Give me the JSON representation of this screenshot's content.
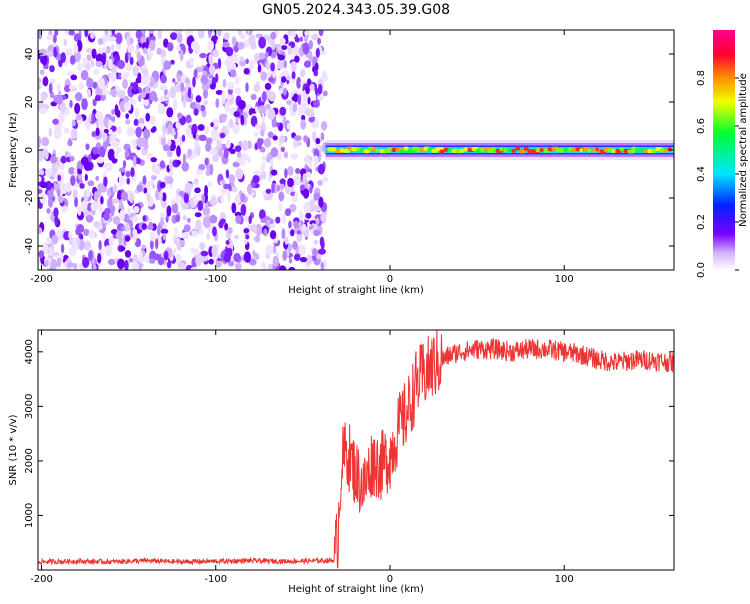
{
  "title": "GN05.2024.343.05.39.G08",
  "chart_data": [
    {
      "type": "heatmap",
      "xlabel": "Height of straight line (km)",
      "ylabel": "Frequency (Hz)",
      "xlim": [
        -202,
        163
      ],
      "ylim": [
        -50,
        50
      ],
      "xticks": [
        -200,
        -100,
        0,
        100
      ],
      "yticks": [
        -40,
        -20,
        0,
        20,
        40
      ],
      "colorbar": {
        "label": "Normalized spectral amplitude",
        "range": [
          0,
          1
        ],
        "ticks": [
          0.0,
          0.2,
          0.4,
          0.6,
          0.8
        ],
        "tick_labels": [
          "0.0",
          "0.2",
          "0.4",
          "0.6",
          "0.8"
        ],
        "colors": [
          "#ffffff",
          "#d4b4ff",
          "#7a00ff",
          "#0022ff",
          "#00e5ff",
          "#00ff30",
          "#f0ff00",
          "#ff9000",
          "#ff0030",
          "#ff0090"
        ]
      },
      "regions": [
        {
          "name": "noise",
          "x_range": [
            -202,
            -37
          ],
          "y_range": [
            -50,
            50
          ],
          "amplitude": [
            0.0,
            0.15
          ]
        },
        {
          "name": "signal",
          "x_range": [
            -37,
            163
          ],
          "frequency_hz": 0,
          "amplitude": [
            0.3,
            1.0
          ]
        }
      ]
    },
    {
      "type": "line",
      "xlabel": "Height of straight line (km)",
      "ylabel": "SNR (10 * v/v)",
      "xlim": [
        -202,
        163
      ],
      "ylim": [
        0,
        4400
      ],
      "xticks": [
        -200,
        -100,
        0,
        100
      ],
      "yticks": [
        1000,
        2000,
        3000,
        4000
      ],
      "color": "#ee3333",
      "series": [
        {
          "x": [
            -202,
            -180,
            -160,
            -140,
            -120,
            -100,
            -80,
            -60,
            -40,
            -32,
            -30,
            -28,
            -25,
            -20,
            -15,
            -10,
            -5,
            0,
            5,
            10,
            15,
            20,
            25,
            30,
            35,
            40,
            50,
            60,
            70,
            80,
            90,
            100,
            110,
            120,
            130,
            140,
            150,
            163
          ],
          "y": [
            150,
            160,
            150,
            170,
            150,
            160,
            170,
            160,
            170,
            180,
            600,
            1900,
            2200,
            1800,
            1500,
            2000,
            1900,
            2100,
            2600,
            2900,
            3400,
            3600,
            3750,
            3850,
            3950,
            4000,
            4050,
            4050,
            4000,
            4050,
            4050,
            4000,
            3950,
            3850,
            3800,
            3850,
            3850,
            3800
          ]
        }
      ]
    }
  ]
}
